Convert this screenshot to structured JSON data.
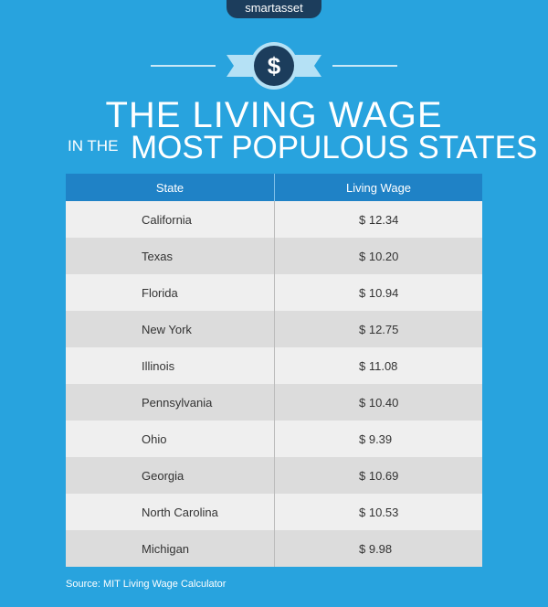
{
  "brand": "smartasset",
  "icon": "$",
  "title": {
    "line1": "THE LIVING WAGE",
    "prefix": "IN THE",
    "line2": "MOST POPULOUS STATES"
  },
  "table": {
    "header": [
      "State",
      "Living Wage"
    ],
    "rows": [
      [
        "California",
        "$ 12.34"
      ],
      [
        "Texas",
        "$ 10.20"
      ],
      [
        "Florida",
        "$ 10.94"
      ],
      [
        "New York",
        "$ 12.75"
      ],
      [
        "Illinois",
        "$ 11.08"
      ],
      [
        "Pennsylvania",
        "$ 10.40"
      ],
      [
        "Ohio",
        "$ 9.39"
      ],
      [
        "Georgia",
        "$ 10.69"
      ],
      [
        "North Carolina",
        "$ 10.53"
      ],
      [
        "Michigan",
        "$ 9.98"
      ]
    ]
  },
  "source": "Source: MIT Living Wage Calculator"
}
